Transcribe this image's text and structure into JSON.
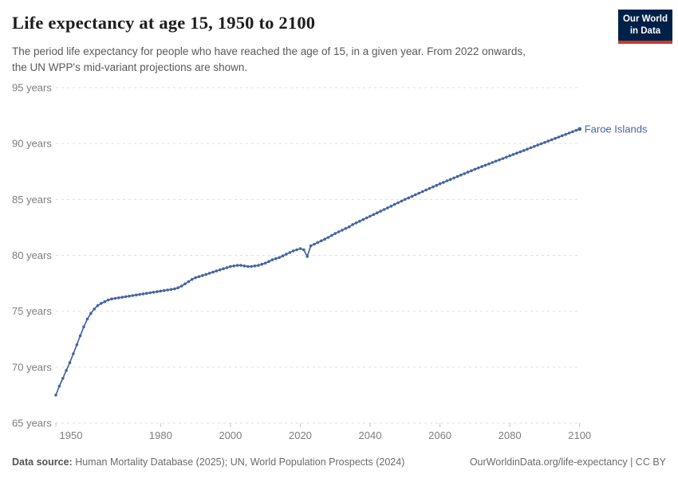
{
  "header": {
    "title": "Life expectancy at age 15, 1950 to 2100",
    "subtitle_line1": "The period life expectancy for people who have reached the age of 15, in a given year. From 2022 onwards,",
    "subtitle_line2": "the UN WPP's mid-variant projections are shown.",
    "logo": {
      "line1": "Our World",
      "line2": "in Data",
      "bg_color": "#002147",
      "bar_color": "#ca3a2b"
    }
  },
  "footer": {
    "source_label": "Data source:",
    "source_text": " Human Mortality Database (2025); UN, World Population Prospects (2024)",
    "attribution": "OurWorldinData.org/life-expectancy | CC BY"
  },
  "colors": {
    "series_blue": "#4664a0",
    "grid": "#dedede",
    "axis_text": "#7d7d7d"
  },
  "chart_data": {
    "type": "line",
    "title": "Life expectancy at age 15, 1950 to 2100",
    "subtitle": "The period life expectancy for people who have reached the age of 15, in a given year. From 2022 onwards, the UN WPP's mid-variant projections are shown.",
    "xlabel": "",
    "ylabel": "",
    "xlim": [
      1950,
      2100
    ],
    "ylim": [
      65,
      95
    ],
    "xticks": [
      1950,
      1980,
      2000,
      2020,
      2040,
      2060,
      2080,
      2100
    ],
    "yticks": [
      65,
      70,
      75,
      80,
      85,
      90,
      95
    ],
    "ytick_suffix": " years",
    "grid": "horizontal-dashed",
    "legend_position": "end-of-line-label",
    "markers": true,
    "series": [
      {
        "name": "Faroe Islands",
        "color": "#4664a0",
        "x": {
          "start": 1950,
          "end": 2100,
          "step": 1
        },
        "values": [
          67.5,
          68.3,
          69.0,
          69.7,
          70.4,
          71.2,
          72.0,
          72.8,
          73.6,
          74.3,
          74.8,
          75.2,
          75.5,
          75.7,
          75.85,
          76.0,
          76.1,
          76.15,
          76.2,
          76.25,
          76.3,
          76.35,
          76.4,
          76.45,
          76.5,
          76.55,
          76.6,
          76.65,
          76.7,
          76.75,
          76.8,
          76.85,
          76.9,
          76.95,
          77.0,
          77.1,
          77.25,
          77.45,
          77.65,
          77.85,
          78.0,
          78.1,
          78.2,
          78.3,
          78.4,
          78.5,
          78.6,
          78.7,
          78.8,
          78.9,
          79.0,
          79.05,
          79.1,
          79.1,
          79.05,
          79.0,
          79.0,
          79.05,
          79.1,
          79.2,
          79.3,
          79.45,
          79.6,
          79.7,
          79.8,
          79.95,
          80.1,
          80.25,
          80.4,
          80.5,
          80.6,
          80.5,
          79.9,
          80.85,
          81.0,
          81.15,
          81.3,
          81.45,
          81.6,
          81.78,
          81.95,
          82.1,
          82.25,
          82.4,
          82.55,
          82.75,
          82.9,
          83.05,
          83.2,
          83.35,
          83.5,
          83.65,
          83.8,
          83.95,
          84.1,
          84.25,
          84.4,
          84.55,
          84.7,
          84.85,
          85.0,
          85.14,
          85.28,
          85.42,
          85.56,
          85.7,
          85.84,
          85.98,
          86.12,
          86.26,
          86.4,
          86.53,
          86.66,
          86.79,
          86.92,
          87.05,
          87.18,
          87.31,
          87.44,
          87.57,
          87.7,
          87.82,
          87.94,
          88.06,
          88.18,
          88.3,
          88.42,
          88.54,
          88.66,
          88.78,
          88.9,
          89.02,
          89.14,
          89.26,
          89.38,
          89.5,
          89.62,
          89.74,
          89.86,
          89.98,
          90.1,
          90.22,
          90.34,
          90.46,
          90.58,
          90.7,
          90.82,
          90.94,
          91.06,
          91.18,
          91.3
        ]
      }
    ],
    "annotations": [
      {
        "text": "Faroe Islands",
        "type": "series-end-label",
        "color": "#4664a0"
      }
    ]
  }
}
